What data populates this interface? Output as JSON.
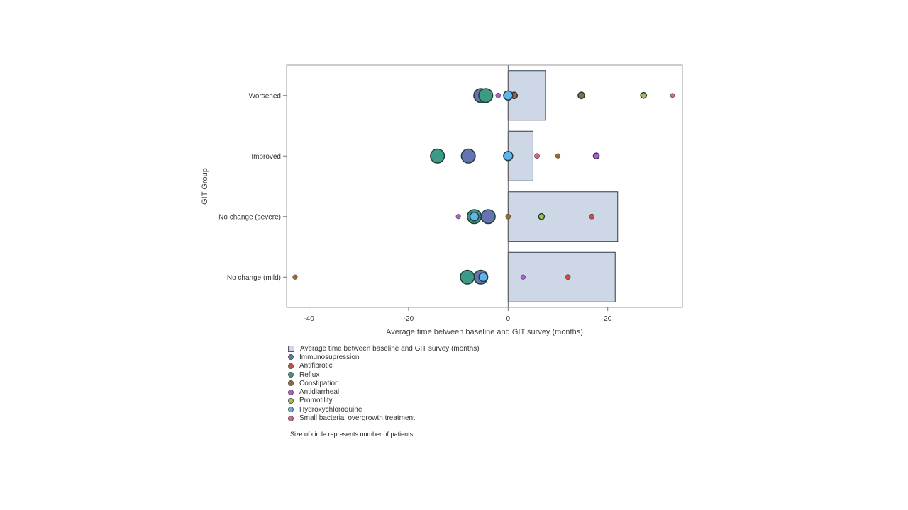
{
  "chart_data": {
    "type": "bar",
    "orientation": "horizontal",
    "categories": [
      "Worsened",
      "Improved",
      "No change (severe)",
      "No change (mild)"
    ],
    "bar_series": {
      "name": "Average time between baseline and GIT survey (months)",
      "values": [
        7.5,
        5,
        22,
        21.5
      ],
      "color": "#cdd7e6"
    },
    "scatter_series": [
      {
        "name": "Immunosupression",
        "color": "#6574b0",
        "points": [
          {
            "category": "Worsened",
            "x": -5.5,
            "size": 3
          },
          {
            "category": "Improved",
            "x": -8,
            "size": 3
          },
          {
            "category": "No change (severe)",
            "x": -4,
            "size": 3
          },
          {
            "category": "No change (mild)",
            "x": -5.5,
            "size": 3
          }
        ]
      },
      {
        "name": "Antifibrotic",
        "color": "#d9473d",
        "points": [
          {
            "category": "Worsened",
            "x": 1.2,
            "size": 1
          },
          {
            "category": "Improved",
            "x": 0,
            "size": 1
          },
          {
            "category": "No change (severe)",
            "x": 16.8,
            "size": 0.6
          },
          {
            "category": "No change (mild)",
            "x": 12,
            "size": 0.6
          }
        ]
      },
      {
        "name": "Reflux",
        "color": "#3d9a86",
        "points": [
          {
            "category": "Worsened",
            "x": -4.5,
            "size": 3
          },
          {
            "category": "Improved",
            "x": -14.2,
            "size": 3
          },
          {
            "category": "No change (severe)",
            "x": -6.8,
            "size": 3
          },
          {
            "category": "No change (mild)",
            "x": -8.2,
            "size": 3
          }
        ]
      },
      {
        "name": "Constipation",
        "color": "#9a6a35",
        "points": [
          {
            "category": "Worsened",
            "x": 14.7,
            "size": 1
          },
          {
            "category": "Improved",
            "x": 10,
            "size": 0.5
          },
          {
            "category": "No change (severe)",
            "x": 0,
            "size": 0.6
          },
          {
            "category": "No change (mild)",
            "x": -42.8,
            "size": 0.5
          }
        ]
      },
      {
        "name": "Antidiarrheal",
        "color": "#b25ad8",
        "points": [
          {
            "category": "Worsened",
            "x": -2,
            "size": 0.6
          },
          {
            "category": "Improved",
            "x": 17.7,
            "size": 0.8
          },
          {
            "category": "No change (severe)",
            "x": -10,
            "size": 0.5
          },
          {
            "category": "No change (mild)",
            "x": 3,
            "size": 0.5
          }
        ]
      },
      {
        "name": "Promotility",
        "color": "#a9c042",
        "points": [
          {
            "category": "Worsened",
            "x": 27.2,
            "size": 0.8
          },
          {
            "category": "No change (severe)",
            "x": 6.7,
            "size": 0.8
          }
        ]
      },
      {
        "name": "Hydroxychloroquine",
        "color": "#63b3ea",
        "points": [
          {
            "category": "Worsened",
            "x": 0,
            "size": 1.7
          },
          {
            "category": "Improved",
            "x": 0,
            "size": 1.7
          },
          {
            "category": "No change (severe)",
            "x": -6.8,
            "size": 1.6
          },
          {
            "category": "No change (mild)",
            "x": -5,
            "size": 1.6
          }
        ]
      },
      {
        "name": "Small bacterial overgrowth treatment",
        "color": "#d9668a",
        "points": [
          {
            "category": "Worsened",
            "x": 33,
            "size": 0.4
          },
          {
            "category": "Improved",
            "x": 5.8,
            "size": 0.6
          }
        ]
      }
    ],
    "x_range": [
      -44.5,
      35
    ],
    "x_ticks": [
      -40,
      -20,
      0,
      20
    ],
    "xlabel": "Average time between baseline and GIT survey (months)",
    "ylabel": "GIT Group",
    "grid": false,
    "legend_position": "bottom-left"
  },
  "legend": {
    "items": [
      {
        "label": "Average time between baseline and GIT survey (months)",
        "color": "#cdd7e6",
        "shape": "square"
      },
      {
        "label": "Immunosupression",
        "color": "#6574b0",
        "shape": "circle"
      },
      {
        "label": "Antifibrotic",
        "color": "#d9473d",
        "shape": "circle"
      },
      {
        "label": "Reflux",
        "color": "#3d9a86",
        "shape": "circle"
      },
      {
        "label": "Constipation",
        "color": "#9a6a35",
        "shape": "circle"
      },
      {
        "label": "Antidiarrheal",
        "color": "#b25ad8",
        "shape": "circle"
      },
      {
        "label": "Promotility",
        "color": "#a9c042",
        "shape": "circle"
      },
      {
        "label": "Hydroxychloroquine",
        "color": "#63b3ea",
        "shape": "circle"
      },
      {
        "label": "Small bacterial overgrowth treatment",
        "color": "#d9668a",
        "shape": "circle"
      }
    ]
  },
  "footnote": "Size of circle represents number of patients"
}
